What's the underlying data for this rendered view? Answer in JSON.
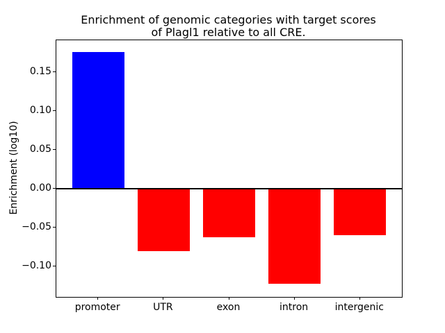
{
  "chart_data": {
    "type": "bar",
    "title": "Enrichment of genomic categories with target scores\nof Plagl1 relative to all CRE.",
    "title_lines": [
      "Enrichment of genomic categories with target scores",
      "of Plagl1 relative to all CRE."
    ],
    "xlabel": "",
    "ylabel": "Enrichment (log10)",
    "categories": [
      "promoter",
      "UTR",
      "exon",
      "intron",
      "intergenic"
    ],
    "values": [
      0.176,
      -0.08,
      -0.062,
      -0.122,
      -0.06
    ],
    "bar_colors": [
      "#0000ff",
      "#ff0000",
      "#ff0000",
      "#ff0000",
      "#ff0000"
    ],
    "bar_width": 0.8,
    "ylim": [
      -0.139,
      0.191
    ],
    "xlim": [
      -0.64,
      4.64
    ],
    "yticks": [
      0.15,
      0.1,
      0.05,
      0.0,
      -0.05,
      -0.1
    ],
    "ytick_labels": [
      "0.15",
      "0.10",
      "0.05",
      "0.00",
      "−0.05",
      "−0.10"
    ],
    "zero_line": true,
    "grid": false,
    "legend": null
  },
  "colors": {
    "positive_bar": "#0000ff",
    "negative_bar": "#ff0000",
    "axis": "#000000",
    "background": "#ffffff",
    "text": "#000000"
  }
}
